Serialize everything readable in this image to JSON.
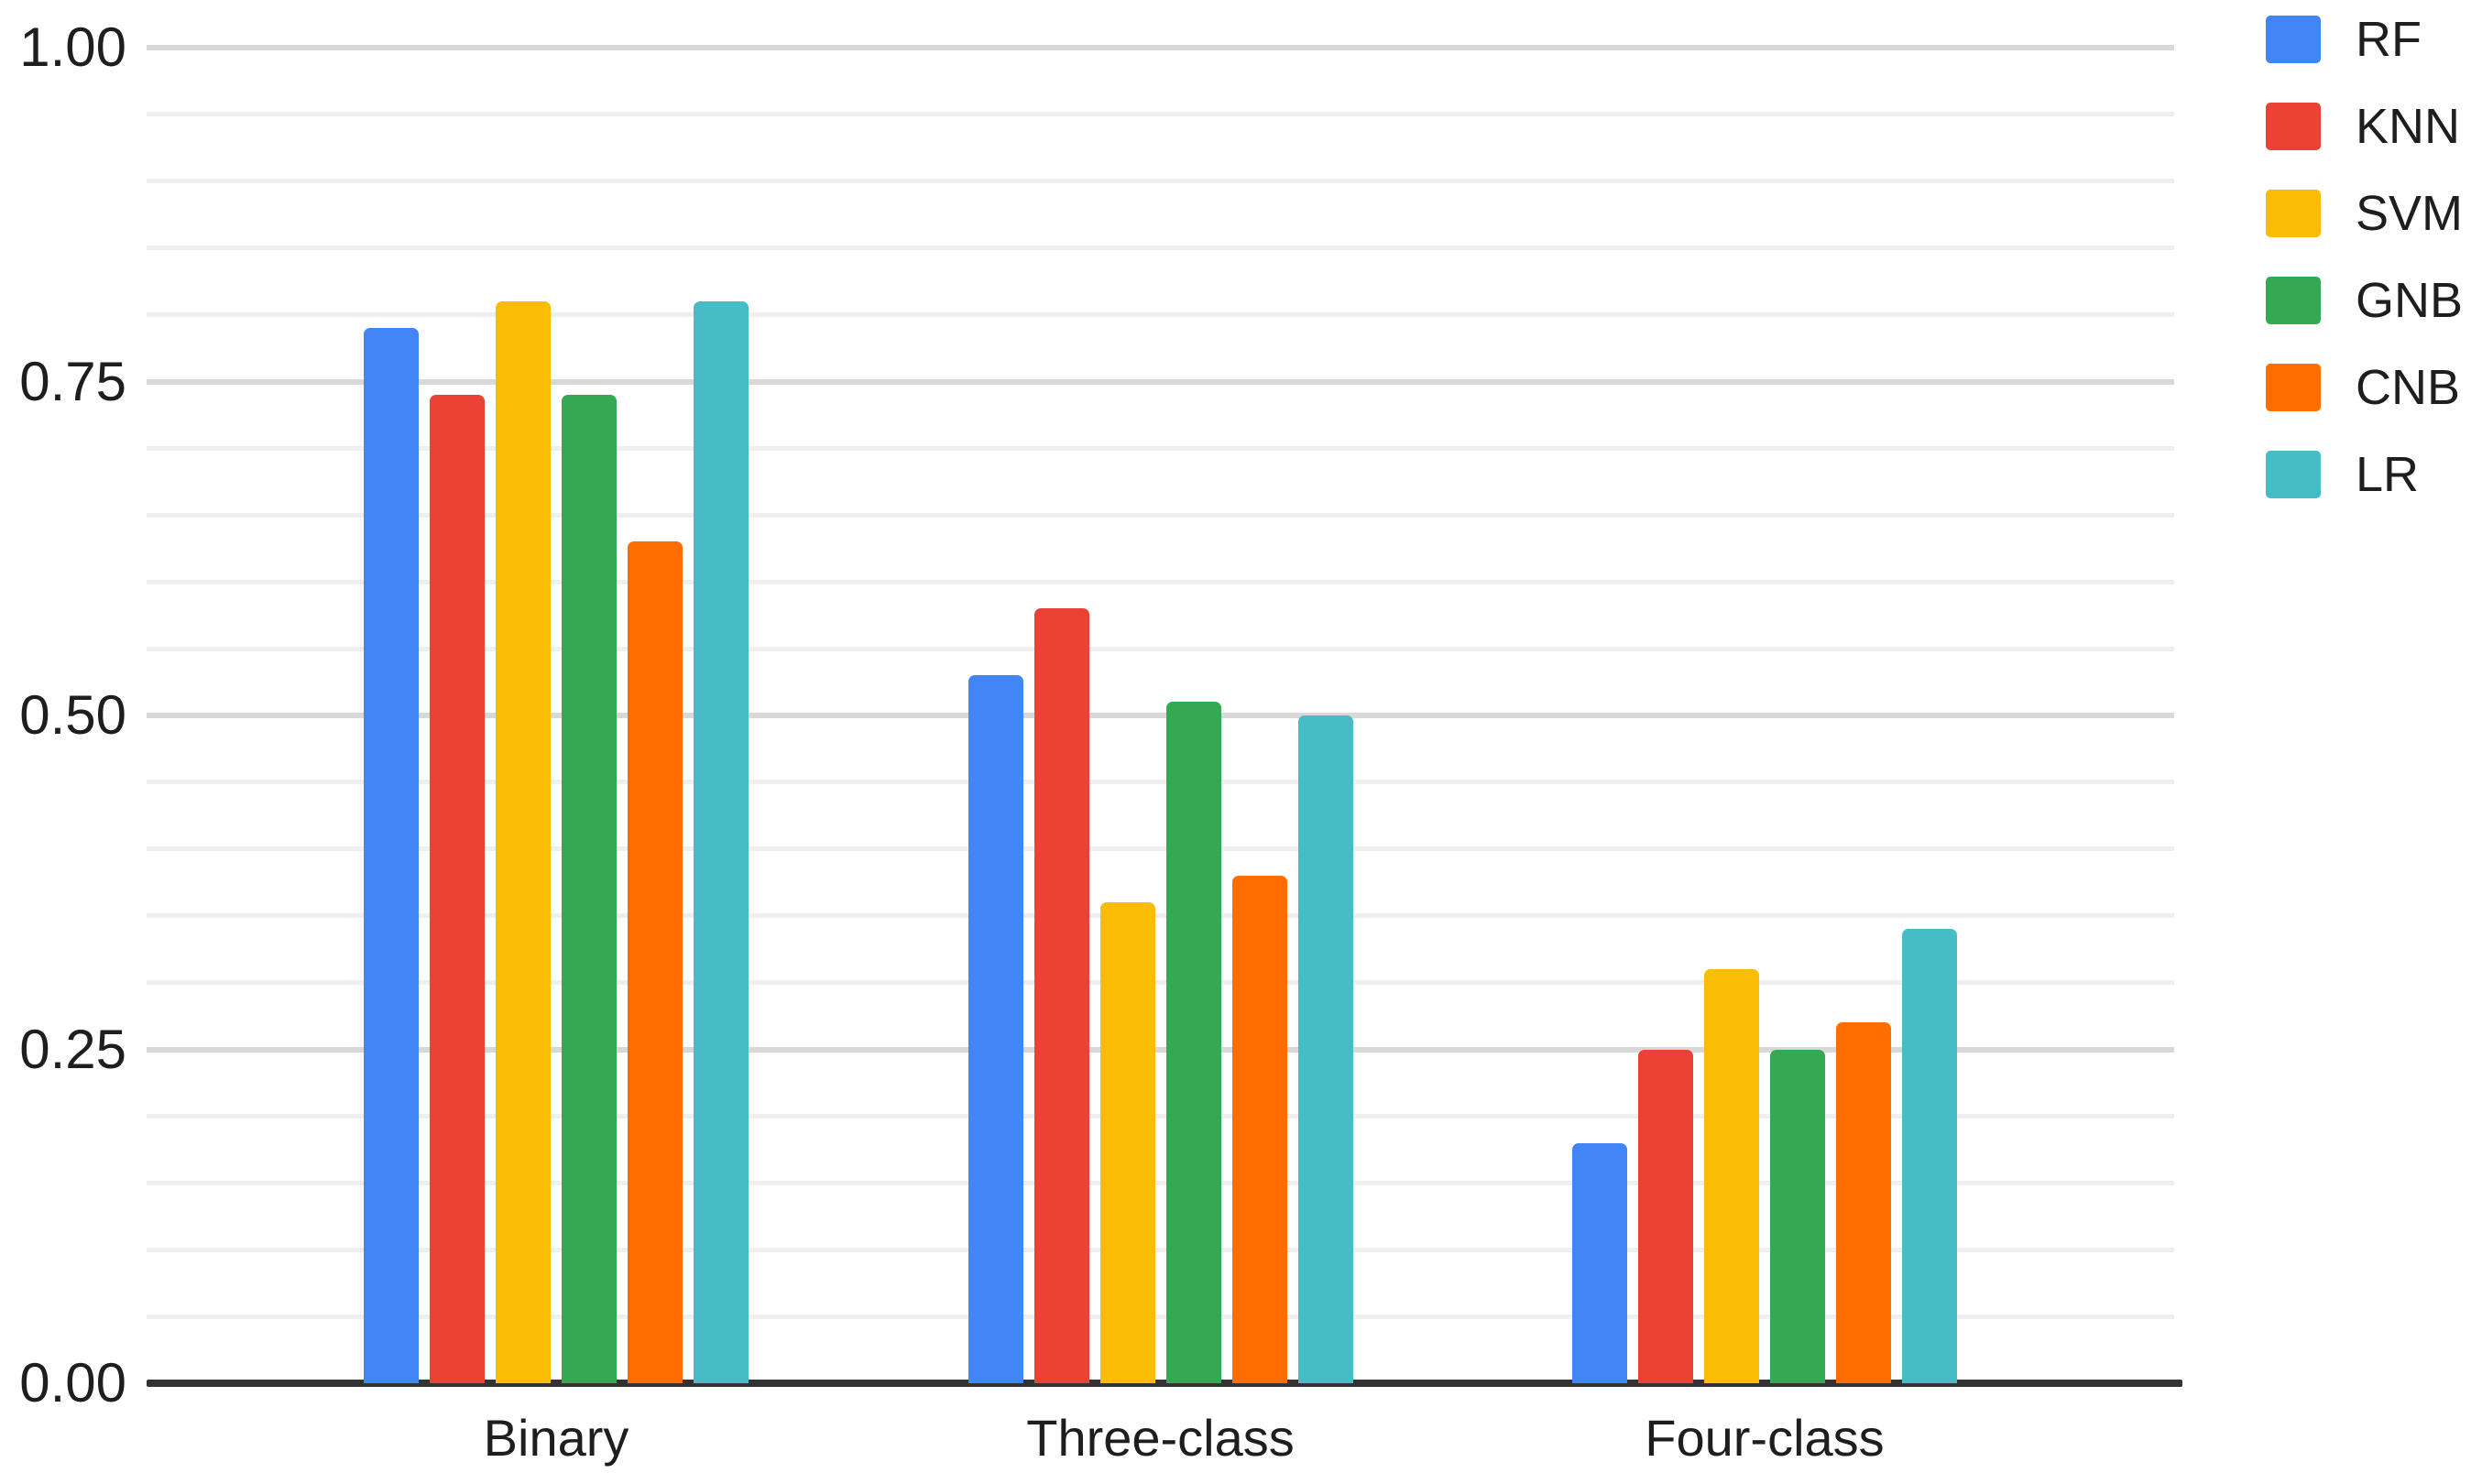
{
  "chart_data": {
    "type": "bar",
    "title": "",
    "xlabel": "",
    "ylabel": "",
    "categories": [
      "Binary",
      "Three-class",
      "Four-class"
    ],
    "series": [
      {
        "name": "RF",
        "color": "#4285F4",
        "values": [
          0.79,
          0.53,
          0.18
        ]
      },
      {
        "name": "KNN",
        "color": "#EA4335",
        "values": [
          0.74,
          0.58,
          0.25
        ]
      },
      {
        "name": "SVM",
        "color": "#FBBC04",
        "values": [
          0.81,
          0.36,
          0.31
        ]
      },
      {
        "name": "GNB",
        "color": "#34A853",
        "values": [
          0.74,
          0.51,
          0.25
        ]
      },
      {
        "name": "CNB",
        "color": "#FF6D01",
        "values": [
          0.63,
          0.38,
          0.27
        ]
      },
      {
        "name": "LR",
        "color": "#46BDC6",
        "values": [
          0.81,
          0.5,
          0.34
        ]
      }
    ],
    "ylim": [
      0,
      1
    ],
    "ytick_labels": [
      "1.00",
      "0.75",
      "0.50",
      "0.25",
      "0.00"
    ],
    "grid": {
      "major_interval": 0.25,
      "minor_interval": 0.05,
      "major_color": "#D8D8D8",
      "minor_color": "#EFEFEF",
      "axis_line_color": "#333333"
    },
    "legend_position": "right",
    "text_color": "#1E1E1E",
    "background_color": "#FFFFFF"
  }
}
